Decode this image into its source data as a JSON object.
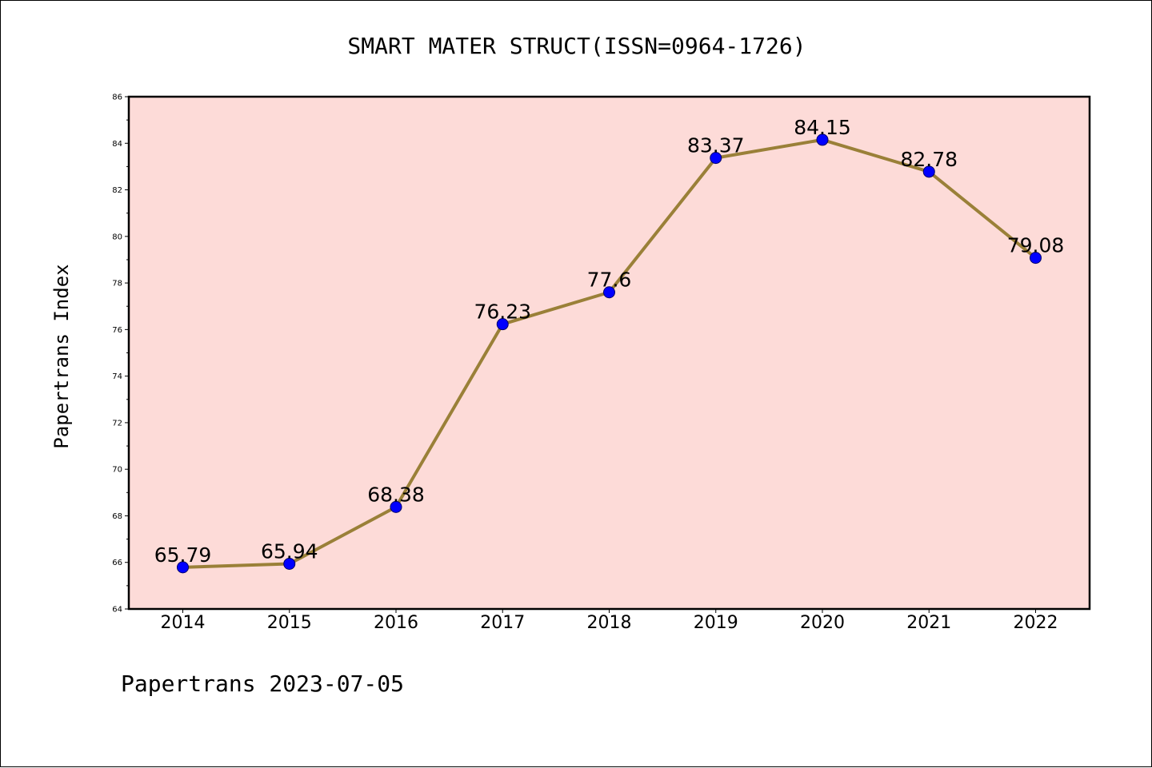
{
  "chart_data": {
    "type": "line",
    "title": "SMART MATER STRUCT(ISSN=0964-1726)",
    "xlabel": "",
    "ylabel": "Papertrans Index",
    "categories": [
      "2014",
      "2015",
      "2016",
      "2017",
      "2018",
      "2019",
      "2020",
      "2021",
      "2022"
    ],
    "series": [
      {
        "values": [
          65.79,
          65.94,
          68.38,
          76.23,
          77.6,
          83.37,
          84.15,
          82.78,
          79.08
        ],
        "labels": [
          "65.79",
          "65.94",
          "68.38",
          "76.23",
          "77.6",
          "83.37",
          "84.15",
          "82.78",
          "79.08"
        ]
      }
    ],
    "ylim": [
      64,
      86
    ],
    "yticks": [
      64,
      66,
      68,
      70,
      72,
      74,
      76,
      78,
      80,
      82,
      84,
      86
    ],
    "grid": false,
    "colors": {
      "plot_background": "#fddbd8",
      "line": "#9a8038",
      "marker": "#0000ff",
      "marker_edge": "#00006a"
    }
  },
  "footer": "Papertrans 2023-07-05"
}
